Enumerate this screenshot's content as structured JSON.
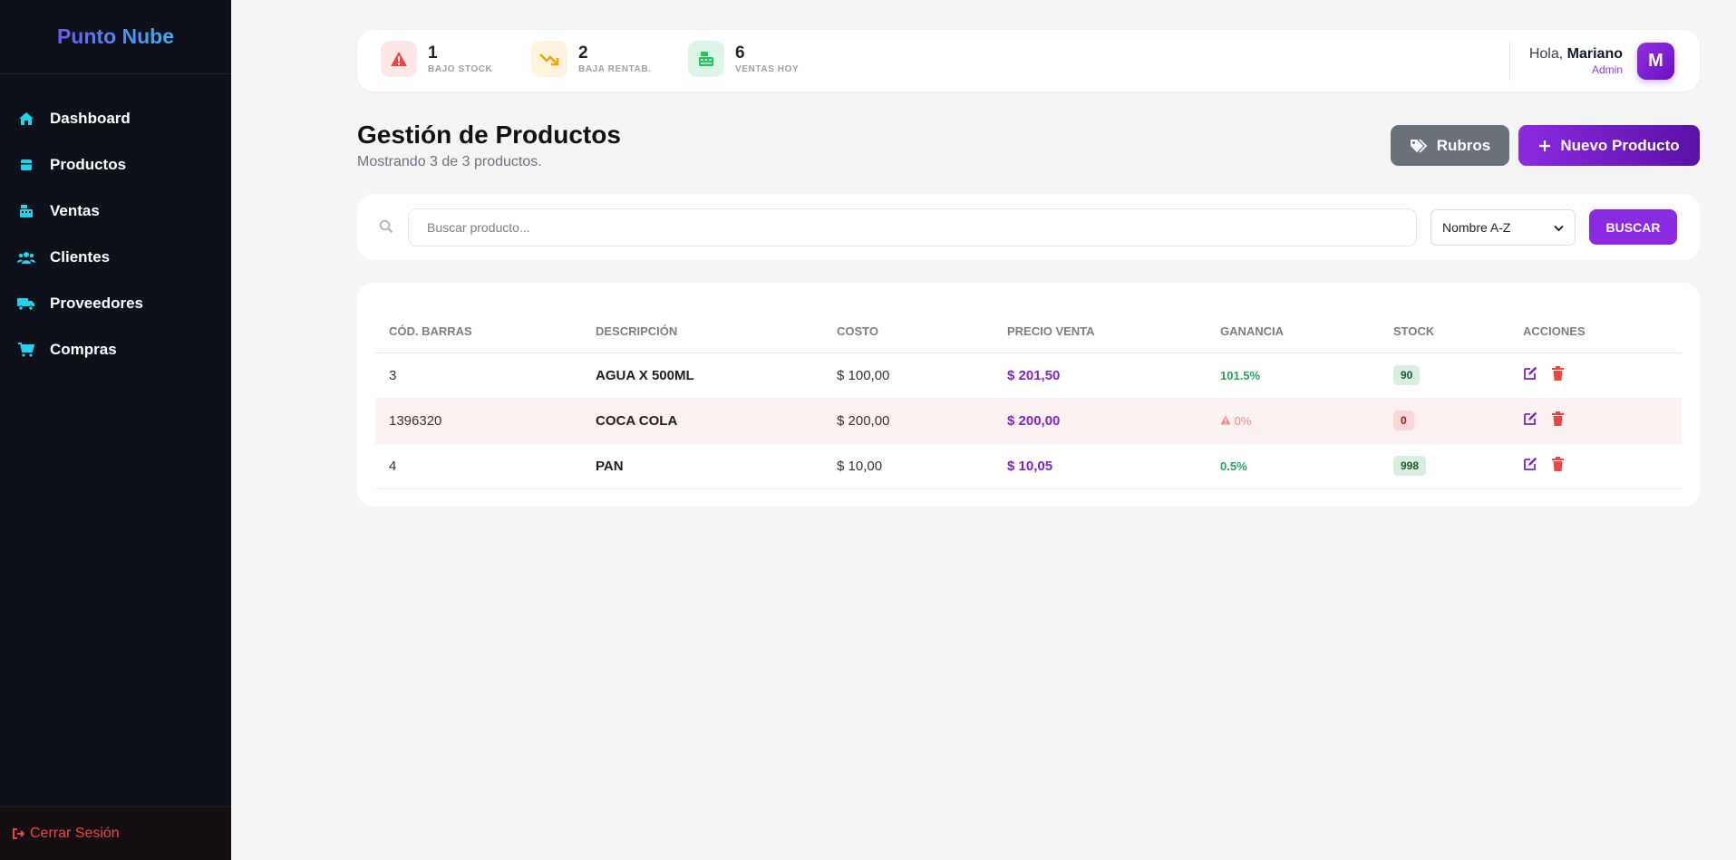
{
  "app": {
    "brand": "Punto Nube"
  },
  "sidebar": {
    "items": [
      {
        "label": "Dashboard",
        "icon": "home-icon"
      },
      {
        "label": "Productos",
        "icon": "box-icon"
      },
      {
        "label": "Ventas",
        "icon": "cash-register-icon"
      },
      {
        "label": "Clientes",
        "icon": "users-icon"
      },
      {
        "label": "Proveedores",
        "icon": "truck-icon"
      },
      {
        "label": "Compras",
        "icon": "cart-icon"
      }
    ],
    "logout": "Cerrar Sesión"
  },
  "topbar": {
    "stats": [
      {
        "value": "1",
        "label": "BAJO STOCK",
        "icon": "warning-icon",
        "color": "#ef4444"
      },
      {
        "value": "2",
        "label": "BAJA RENTAB.",
        "icon": "trend-down-icon",
        "color": "#f59e0b"
      },
      {
        "value": "6",
        "label": "VENTAS HOY",
        "icon": "cash-register-icon",
        "color": "#22c55e"
      }
    ],
    "greeting": "Hola,",
    "user_name": "Mariano",
    "user_role": "Admin",
    "avatar_letter": "M"
  },
  "header": {
    "title": "Gestión de Productos",
    "subtitle": "Mostrando 3 de 3 productos.",
    "rubros_label": "Rubros",
    "nuevo_label": "Nuevo Producto"
  },
  "search": {
    "placeholder": "Buscar producto...",
    "value": "",
    "sort_selected": "Nombre A-Z",
    "button_label": "BUSCAR"
  },
  "table": {
    "columns": [
      "CÓD. BARRAS",
      "DESCRIPCIÓN",
      "COSTO",
      "PRECIO VENTA",
      "GANANCIA",
      "STOCK",
      "ACCIONES"
    ],
    "rows": [
      {
        "code": "3",
        "description": "AGUA X 500ML",
        "cost": "$ 100,00",
        "price": "$ 201,50",
        "margin": "101.5%",
        "stock": "90",
        "status": "ok"
      },
      {
        "code": "1396320",
        "description": "COCA COLA",
        "cost": "$ 200,00",
        "price": "$ 200,00",
        "margin": "0%",
        "stock": "0",
        "status": "warn"
      },
      {
        "code": "4",
        "description": "PAN",
        "cost": "$ 10,00",
        "price": "$ 10,05",
        "margin": "0.5%",
        "stock": "998",
        "status": "ok"
      }
    ]
  },
  "colors": {
    "accent": "#8a2be2",
    "sidebar_bg": "#0d111a",
    "nav_icon": "#22d3ee",
    "danger": "#ef4444",
    "success": "#22a35a"
  }
}
